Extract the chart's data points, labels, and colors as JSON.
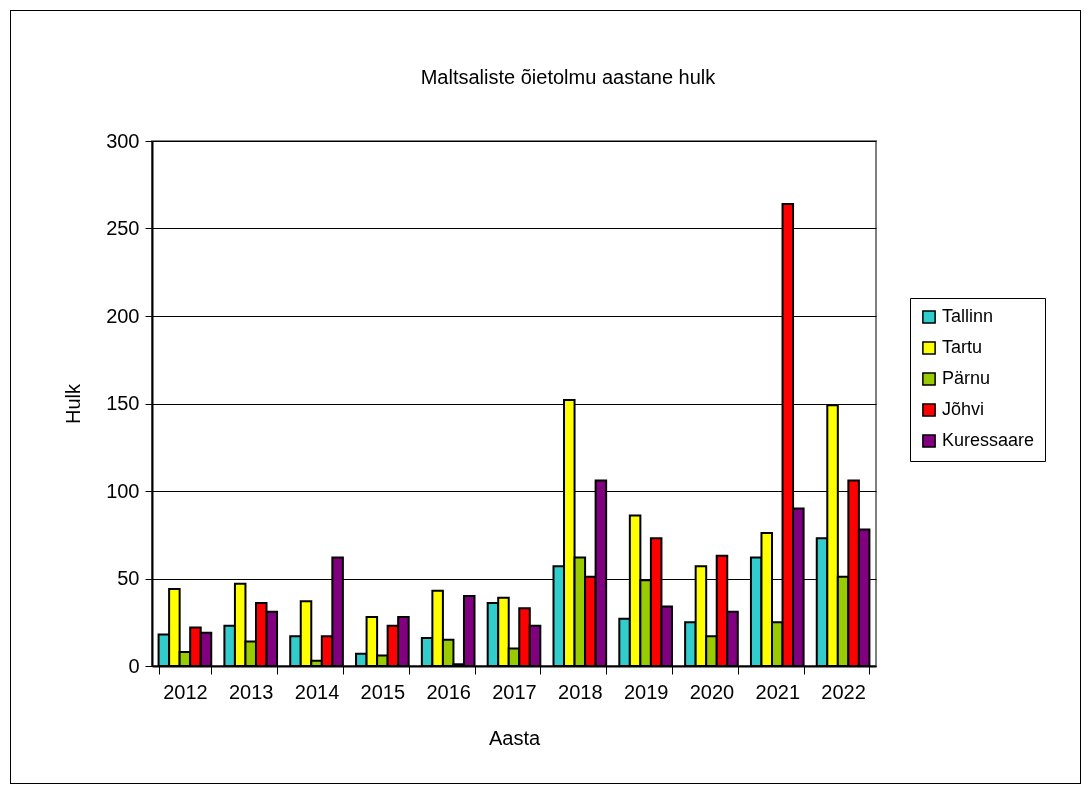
{
  "chart_data": {
    "type": "bar",
    "title": "Maltsaliste õietolmu aastane hulk",
    "xlabel": "Aasta",
    "ylabel": "Hulk",
    "categories": [
      "2012",
      "2013",
      "2014",
      "2015",
      "2016",
      "2017",
      "2018",
      "2019",
      "2020",
      "2021",
      "2022"
    ],
    "series": [
      {
        "name": "Tallinn",
        "color": "#33cccc",
        "values": [
          18,
          23,
          17,
          7,
          16,
          36,
          57,
          27,
          25,
          62,
          73
        ]
      },
      {
        "name": "Tartu",
        "color": "#ffff00",
        "values": [
          44,
          47,
          37,
          28,
          43,
          39,
          152,
          86,
          57,
          76,
          149
        ]
      },
      {
        "name": "Pärnu",
        "color": "#99cc00",
        "values": [
          8,
          14,
          3,
          6,
          15,
          10,
          62,
          49,
          17,
          25,
          51
        ]
      },
      {
        "name": "Jõhvi",
        "color": "#ff0000",
        "values": [
          22,
          36,
          17,
          23,
          1,
          33,
          51,
          73,
          63,
          264,
          106
        ]
      },
      {
        "name": "Kuressaare",
        "color": "#800080",
        "values": [
          19,
          31,
          62,
          28,
          40,
          23,
          106,
          34,
          31,
          90,
          78
        ]
      }
    ],
    "ylim": [
      0,
      300
    ],
    "yticks": [
      0,
      50,
      100,
      150,
      200,
      250,
      300
    ],
    "grid": "y",
    "legend": "right"
  }
}
